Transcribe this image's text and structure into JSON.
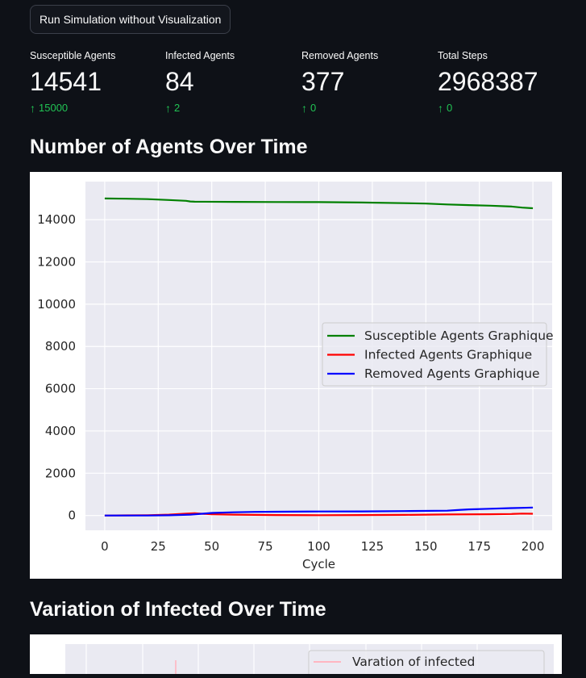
{
  "run_button": {
    "label": "Run Simulation without Visualization"
  },
  "metrics": [
    {
      "label": "Susceptible Agents",
      "value": "14541",
      "delta": "15000"
    },
    {
      "label": "Infected Agents",
      "value": "84",
      "delta": "2"
    },
    {
      "label": "Removed Agents",
      "value": "377",
      "delta": "0"
    },
    {
      "label": "Total Steps",
      "value": "2968387",
      "delta": "0"
    }
  ],
  "section1": {
    "title": "Number of Agents Over Time"
  },
  "section2": {
    "title": "Variation of Infected Over Time"
  },
  "colors": {
    "background": "#0e1117",
    "delta_green": "#21c354",
    "plot_bg": "#eaeaf2"
  },
  "chart_data": [
    {
      "type": "line",
      "title": "",
      "xlabel": "Cycle",
      "ylabel": "",
      "xlim": [
        -9,
        209
      ],
      "ylim": [
        -700,
        15800
      ],
      "xticks": [
        0,
        25,
        50,
        75,
        100,
        125,
        150,
        175,
        200
      ],
      "yticks": [
        0,
        2000,
        4000,
        6000,
        8000,
        10000,
        12000,
        14000
      ],
      "grid": true,
      "legend_position": "center-right",
      "series": [
        {
          "name": "Susceptible Agents Graphique",
          "color": "#008000",
          "x": [
            0,
            10,
            20,
            30,
            38,
            40,
            42,
            60,
            80,
            100,
            120,
            140,
            150,
            160,
            170,
            180,
            190,
            195,
            200
          ],
          "y": [
            15000,
            14990,
            14970,
            14930,
            14890,
            14860,
            14850,
            14840,
            14835,
            14830,
            14810,
            14780,
            14760,
            14720,
            14690,
            14660,
            14620,
            14570,
            14541
          ]
        },
        {
          "name": "Infected Agents Graphique",
          "color": "#ff0000",
          "x": [
            0,
            10,
            20,
            30,
            38,
            42,
            46,
            50,
            60,
            80,
            100,
            120,
            140,
            160,
            180,
            190,
            195,
            200
          ],
          "y": [
            0,
            5,
            15,
            40,
            90,
            110,
            80,
            60,
            40,
            20,
            15,
            20,
            30,
            50,
            60,
            70,
            90,
            84
          ]
        },
        {
          "name": "Removed Agents Graphique",
          "color": "#0000ff",
          "x": [
            0,
            10,
            20,
            30,
            40,
            45,
            50,
            60,
            70,
            80,
            100,
            120,
            140,
            160,
            165,
            170,
            180,
            190,
            195,
            200
          ],
          "y": [
            0,
            0,
            0,
            10,
            40,
            80,
            120,
            150,
            170,
            180,
            190,
            195,
            210,
            230,
            260,
            290,
            320,
            350,
            360,
            377
          ]
        }
      ]
    },
    {
      "type": "line",
      "title": "",
      "legend_position": "top-right",
      "grid": true,
      "series": [
        {
          "name": "Varation of infected",
          "color": "#ffb6c1"
        }
      ]
    }
  ]
}
